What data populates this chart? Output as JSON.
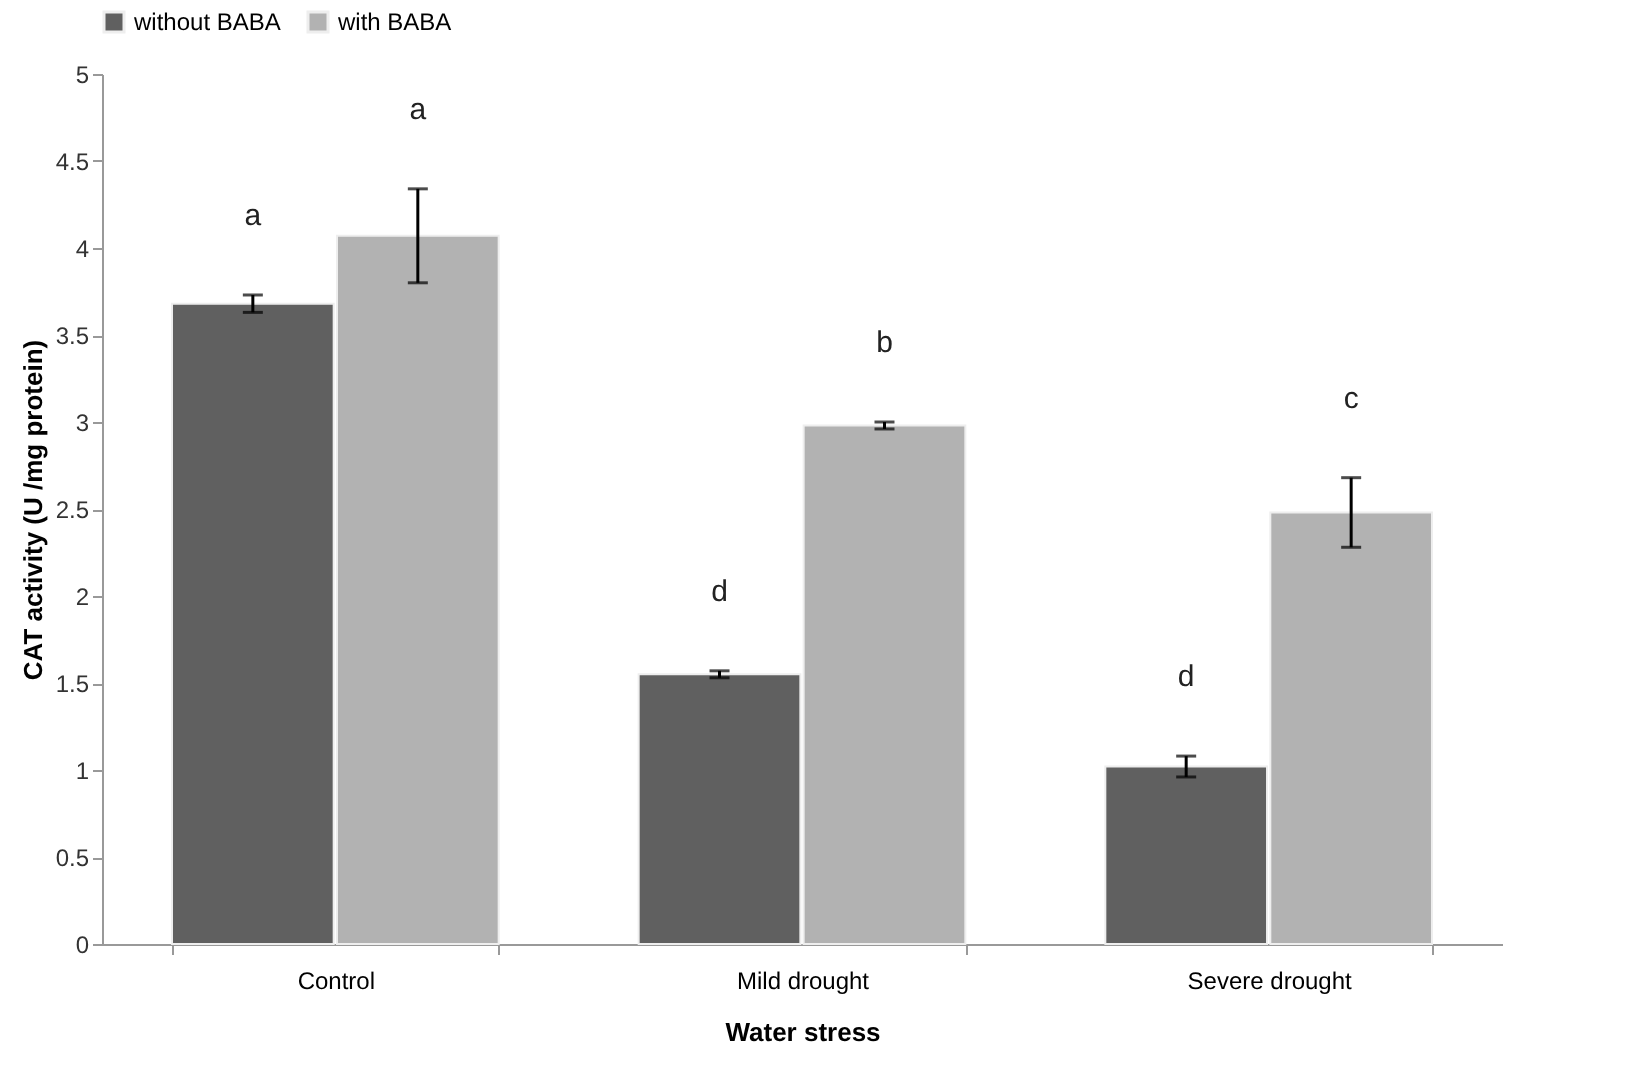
{
  "chart_data": {
    "type": "bar",
    "xlabel": "Water stress",
    "ylabel": "CAT activity (U /mg protein)",
    "categories": [
      "Control",
      "Mild drought",
      "Severe drought"
    ],
    "series": [
      {
        "name": "without BABA",
        "color": "#606060",
        "values": [
          3.68,
          1.55,
          1.02
        ],
        "errors": [
          0.05,
          0.02,
          0.06
        ]
      },
      {
        "name": "with BABA",
        "color": "#b2b2b2",
        "values": [
          4.07,
          2.98,
          2.48
        ],
        "errors": [
          0.27,
          0.02,
          0.2
        ]
      }
    ],
    "ylim": [
      0,
      5
    ],
    "yticks": [
      0,
      0.5,
      1,
      1.5,
      2,
      2.5,
      3,
      3.5,
      4,
      4.5,
      5
    ],
    "grid": false,
    "legend": "top",
    "annotations": [
      "a",
      "a",
      "d",
      "b",
      "d",
      "c"
    ]
  }
}
